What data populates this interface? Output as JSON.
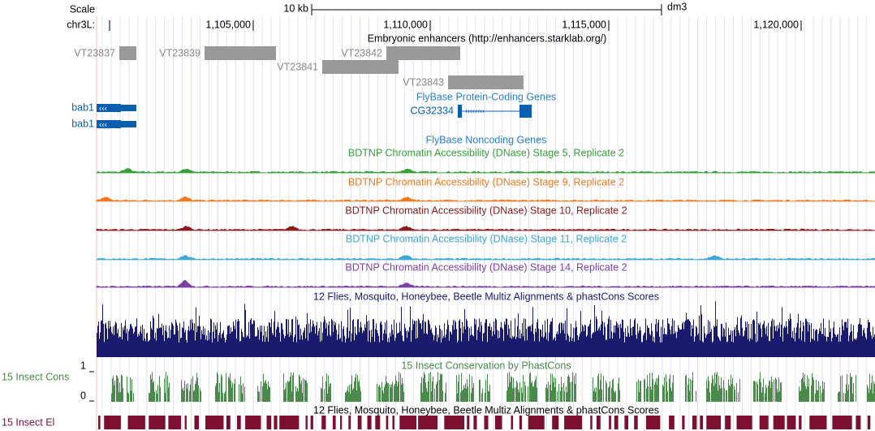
{
  "ruler": {
    "scale_label": "Scale",
    "chrom_label": "chr3L:",
    "scale_bar": "10 kb",
    "assembly": "dm3",
    "positions": [
      "1,105,000",
      "1,110,000",
      "1,115,000",
      "1,120,000"
    ]
  },
  "enhancers": {
    "title": "Embryonic enhancers (http://enhancers.starklab.org/)",
    "features": [
      "VT23837",
      "VT23839",
      "VT23841",
      "VT23842",
      "VT23843"
    ]
  },
  "coding": {
    "title": "FlyBase Protein-Coding Genes",
    "genes": [
      "bab1",
      "bab1",
      "CG32334"
    ]
  },
  "noncoding": {
    "title": "FlyBase Noncoding Genes"
  },
  "dnase": [
    "BDTNP Chromatin Accessibility (DNase) Stage 5, Replicate 2",
    "BDTNP Chromatin Accessibility (DNase) Stage 9, Replicate 2",
    "BDTNP Chromatin Accessibility (DNase) Stage 10, Replicate 2",
    "BDTNP Chromatin Accessibility (DNase) Stage 11, Replicate 2",
    "BDTNP Chromatin Accessibility (DNase) Stage 14, Replicate 2"
  ],
  "multiz": {
    "title": "12 Flies, Mosquito, Honeybee, Beetle Multiz Alignments & phastCons Scores"
  },
  "phastcons": {
    "title": "15 Insect Conservation by PhastCons",
    "label": "15 Insect Cons",
    "ymax": 1,
    "ymin": 0
  },
  "elements": {
    "title": "12 Flies, Mosquito, Honeybee, Beetle Multiz Alignments & phastCons Scores",
    "label": "15 Insect El"
  }
}
